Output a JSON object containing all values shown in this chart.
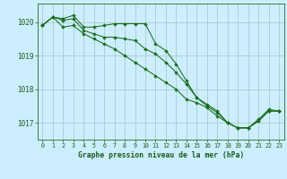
{
  "title": "Graphe pression niveau de la mer (hPa)",
  "background_color": "#cceeff",
  "grid_color": "#aacccc",
  "line_color": "#1a6e1a",
  "marker_color": "#1a6e1a",
  "xlim": [
    -0.5,
    23.5
  ],
  "ylim": [
    1016.5,
    1020.55
  ],
  "yticks": [
    1017,
    1018,
    1019,
    1020
  ],
  "xticks": [
    0,
    1,
    2,
    3,
    4,
    5,
    6,
    7,
    8,
    9,
    10,
    11,
    12,
    13,
    14,
    15,
    16,
    17,
    18,
    19,
    20,
    21,
    22,
    23
  ],
  "series": [
    {
      "x": [
        0,
        1,
        2,
        3,
        4,
        5,
        6,
        7,
        8,
        9,
        10,
        11,
        12,
        13,
        14,
        15,
        16,
        17,
        18,
        19,
        20,
        21,
        22,
        23
      ],
      "y": [
        1019.9,
        1020.15,
        1020.1,
        1020.2,
        1019.85,
        1019.85,
        1019.9,
        1019.95,
        1019.95,
        1019.95,
        1019.95,
        1019.35,
        1019.15,
        1018.75,
        1018.25,
        1017.75,
        1017.55,
        1017.35,
        1017.0,
        1016.85,
        1016.85,
        1017.1,
        1017.4,
        1017.35
      ]
    },
    {
      "x": [
        0,
        1,
        2,
        3,
        4,
        5,
        6,
        7,
        8,
        9,
        10,
        11,
        12,
        13,
        14,
        15,
        16,
        17,
        18,
        19,
        20,
        21,
        22,
        23
      ],
      "y": [
        1019.9,
        1020.15,
        1020.05,
        1020.1,
        1019.75,
        1019.65,
        1019.55,
        1019.55,
        1019.5,
        1019.45,
        1019.2,
        1019.05,
        1018.8,
        1018.5,
        1018.15,
        1017.75,
        1017.5,
        1017.3,
        1017.0,
        1016.85,
        1016.85,
        1017.05,
        1017.35,
        1017.35
      ]
    },
    {
      "x": [
        0,
        1,
        2,
        3,
        4,
        5,
        6,
        7,
        8,
        9,
        10,
        11,
        12,
        13,
        14,
        15,
        16,
        17,
        18,
        19,
        20,
        21,
        22,
        23
      ],
      "y": [
        1019.9,
        1020.15,
        1019.85,
        1019.9,
        1019.65,
        1019.5,
        1019.35,
        1019.2,
        1019.0,
        1018.8,
        1018.6,
        1018.4,
        1018.2,
        1018.0,
        1017.7,
        1017.6,
        1017.45,
        1017.2,
        1017.0,
        1016.85,
        1016.85,
        1017.05,
        1017.35,
        1017.35
      ]
    }
  ]
}
